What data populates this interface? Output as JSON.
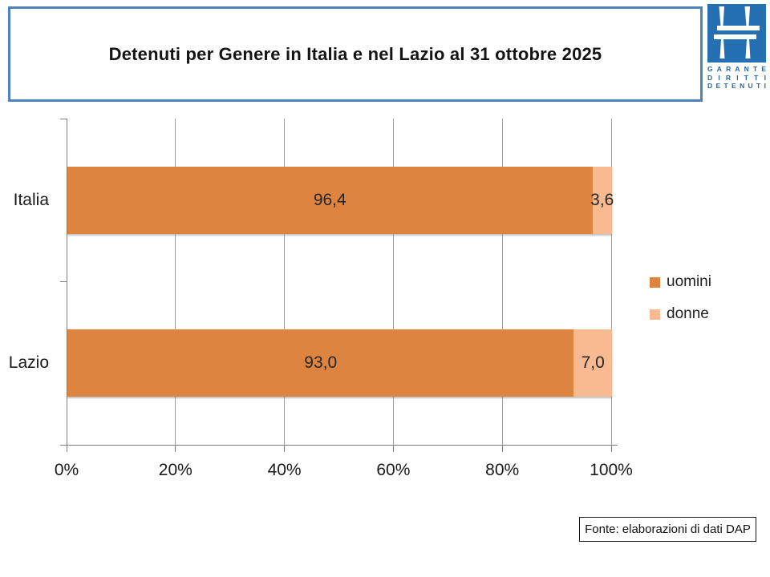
{
  "title": "Detenuti per Genere in Italia e nel Lazio al 31 ottobre 2025",
  "logo": {
    "lines": [
      "GARANTE",
      "DIRITTI",
      "DETENUTI"
    ],
    "square_color": "#2470B3",
    "text_color": "#26679F",
    "glyph": "stylized-h-prison-window-icon"
  },
  "source_note": "Fonte: elaborazioni di dati DAP",
  "colors": {
    "uomini": "#DD8540",
    "donne": "#F7BA91",
    "title_border": "#4F81BD",
    "gridline": "#9e9e9e",
    "axis": "#7f7f7f"
  },
  "chart_data": {
    "type": "bar",
    "orientation": "horizontal",
    "stacked": true,
    "stacked_100_percent": true,
    "title": "Detenuti per Genere in Italia e nel Lazio al 31 ottobre 2025",
    "categories": [
      "Italia",
      "Lazio"
    ],
    "series": [
      {
        "name": "uomini",
        "color": "#DD8540",
        "values": [
          96.4,
          93.0
        ],
        "labels": [
          "96,4",
          "93,0"
        ]
      },
      {
        "name": "donne",
        "color": "#F7BA91",
        "values": [
          3.6,
          7.0
        ],
        "labels": [
          "3,6",
          "7,0"
        ]
      }
    ],
    "x_ticks": [
      "0%",
      "20%",
      "40%",
      "60%",
      "80%",
      "100%"
    ],
    "xlim": [
      0,
      100
    ],
    "grid": true,
    "legend_position": "right",
    "data_label_decimal": "comma"
  }
}
